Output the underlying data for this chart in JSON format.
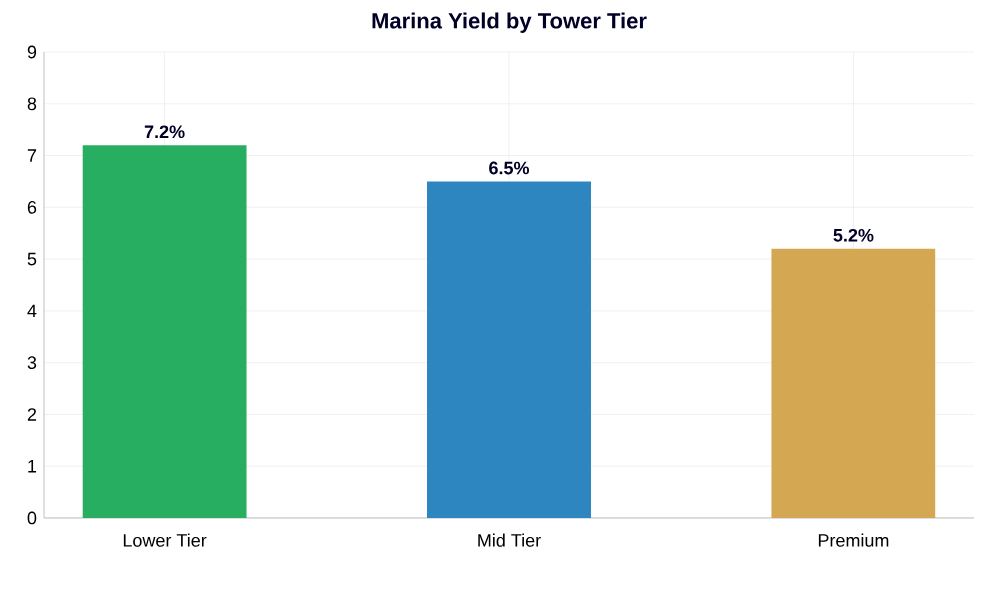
{
  "chart_data": {
    "type": "bar",
    "title": "Marina Yield by Tower Tier",
    "categories": [
      "Lower Tier",
      "Mid Tier",
      "Premium"
    ],
    "values": [
      7.2,
      6.5,
      5.2
    ],
    "value_labels": [
      "7.2%",
      "6.5%",
      "5.2%"
    ],
    "colors": [
      "#27ae60",
      "#2e86c1",
      "#d4a752"
    ],
    "ylim": [
      0,
      9
    ],
    "yticks": [
      0,
      1,
      2,
      3,
      4,
      5,
      6,
      7,
      8,
      9
    ],
    "grid": true
  }
}
